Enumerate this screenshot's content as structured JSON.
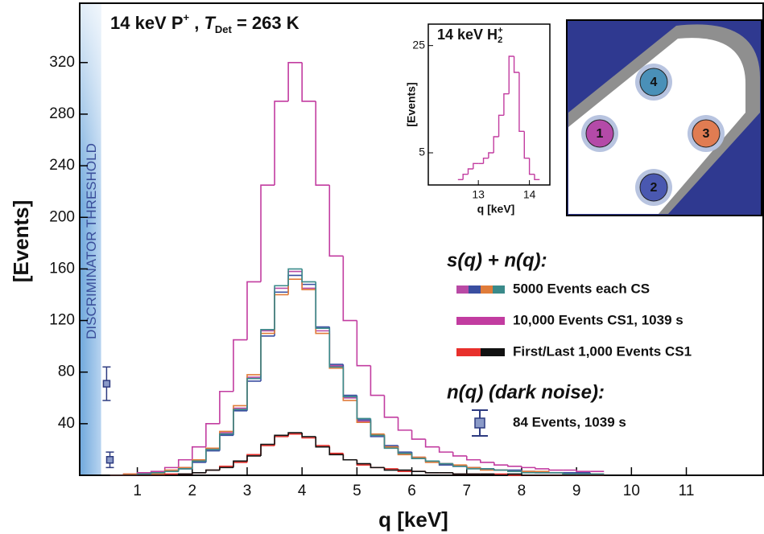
{
  "chart_data": {
    "type": "histogram",
    "title_parts": [
      "14 keV P",
      "+",
      " , ",
      "T",
      "Det",
      " = 263 K"
    ],
    "x_label": "q [keV]",
    "y_label": "[Events]",
    "threshold_label": "DISCRIMINATOR THRESHOLD",
    "threshold_x": 0.34,
    "xlim": [
      -0.05,
      12.4
    ],
    "xticks": [
      1,
      2,
      3,
      4,
      5,
      6,
      7,
      8,
      9,
      10,
      11
    ],
    "ylim": [
      0,
      366
    ],
    "yticks": [
      40,
      80,
      120,
      160,
      200,
      240,
      280,
      320
    ],
    "bins": [
      0.5,
      0.75,
      1,
      1.25,
      1.5,
      1.75,
      2,
      2.25,
      2.5,
      2.75,
      3,
      3.25,
      3.5,
      3.75,
      4,
      4.25,
      4.5,
      4.75,
      5,
      5.25,
      5.5,
      5.75,
      6,
      6.25,
      6.5,
      6.75,
      7,
      7.25,
      7.5,
      7.75,
      8,
      8.25,
      8.5,
      8.75,
      9,
      9.25,
      9.5
    ],
    "legend_headers": [
      "s(q) + n(q):",
      "n(q) (dark noise):"
    ],
    "series": [
      {
        "name": "5000 Events each CS",
        "components": [
          {
            "color": "#b94aa5",
            "values": [
              0,
              1,
              1,
              2,
              3,
              6,
              11,
              20,
              33,
              52,
              76,
              112,
              145,
              158,
              145,
              112,
              85,
              60,
              42,
              31,
              22,
              17,
              14,
              11,
              9,
              7,
              6,
              5,
              4,
              3,
              3,
              2,
              2,
              2,
              1,
              1
            ]
          },
          {
            "color": "#3a4ea0",
            "values": [
              0,
              0,
              1,
              2,
              3,
              5,
              10,
              19,
              31,
              50,
              73,
              108,
              142,
              155,
              148,
              115,
              86,
              62,
              43,
              30,
              23,
              18,
              13,
              11,
              8,
              7,
              6,
              5,
              4,
              4,
              3,
              2,
              2,
              2,
              2,
              1
            ]
          },
          {
            "color": "#e07c3a",
            "values": [
              0,
              1,
              1,
              1,
              4,
              6,
              12,
              21,
              34,
              54,
              78,
              110,
              140,
              152,
              144,
              110,
              83,
              58,
              41,
              32,
              22,
              16,
              14,
              10,
              9,
              8,
              6,
              4,
              4,
              3,
              3,
              3,
              2,
              1,
              1,
              1
            ]
          },
          {
            "color": "#3a8a8a",
            "values": [
              0,
              0,
              1,
              2,
              3,
              5,
              11,
              20,
              32,
              51,
              75,
              113,
              147,
              160,
              150,
              114,
              84,
              61,
              44,
              31,
              21,
              17,
              13,
              11,
              9,
              7,
              5,
              5,
              4,
              3,
              2,
              2,
              2,
              1,
              1,
              1
            ]
          }
        ]
      },
      {
        "name": "10,000 Events CS1, 1039 s",
        "components": [
          {
            "color": "#c23ca0",
            "values": [
              0,
              1,
              2,
              3,
              6,
              12,
              22,
              40,
              65,
              105,
              150,
              225,
              290,
              320,
              290,
              225,
              170,
              120,
              85,
              62,
              45,
              35,
              28,
              22,
              18,
              15,
              12,
              10,
              8,
              7,
              6,
              5,
              4,
              4,
              3,
              3
            ]
          }
        ]
      },
      {
        "name": "First/Last 1,000 Events CS1",
        "components": [
          {
            "color": "#e8302c",
            "values": [
              0,
              0,
              0,
              0,
              1,
              1,
              2,
              4,
              7,
              10,
              16,
              23,
              30,
              32,
              29,
              23,
              17,
              12,
              8,
              6,
              5,
              3,
              3,
              2,
              2,
              1,
              1,
              1,
              1,
              0,
              0,
              0,
              0,
              0,
              0,
              0
            ]
          },
          {
            "color": "#111111",
            "values": [
              0,
              0,
              0,
              0,
              0,
              1,
              2,
              4,
              6,
              11,
              15,
              24,
              31,
              33,
              30,
              22,
              16,
              12,
              9,
              6,
              4,
              4,
              3,
              2,
              2,
              1,
              1,
              1,
              0,
              1,
              0,
              0,
              0,
              0,
              0,
              0
            ]
          }
        ]
      }
    ],
    "noise": {
      "name": "84 Events, 1039 s",
      "color": "#8a9ac8",
      "x": [
        0.44,
        0.5
      ],
      "values": [
        71,
        12
      ],
      "errors": [
        13,
        6
      ]
    },
    "inset": {
      "title_parts": [
        "14 keV H",
        "2",
        "+"
      ],
      "x_label": "q [keV]",
      "y_label": "[Events]",
      "xlim": [
        12.02,
        14.4
      ],
      "xticks": [
        13,
        14
      ],
      "ylim": [
        -1,
        29
      ],
      "yticks": [
        5,
        25
      ],
      "color": "#c23ca0",
      "bins": [
        12.6,
        12.7,
        12.8,
        12.9,
        13,
        13.1,
        13.2,
        13.3,
        13.4,
        13.5,
        13.6,
        13.7,
        13.8,
        13.9,
        14,
        14.1,
        14.2
      ],
      "values": [
        0,
        1,
        2,
        3,
        3,
        4,
        5,
        8,
        12,
        16,
        23,
        20,
        9,
        4,
        1,
        0
      ]
    },
    "diagram_labels": [
      "1",
      "2",
      "3",
      "4"
    ]
  }
}
